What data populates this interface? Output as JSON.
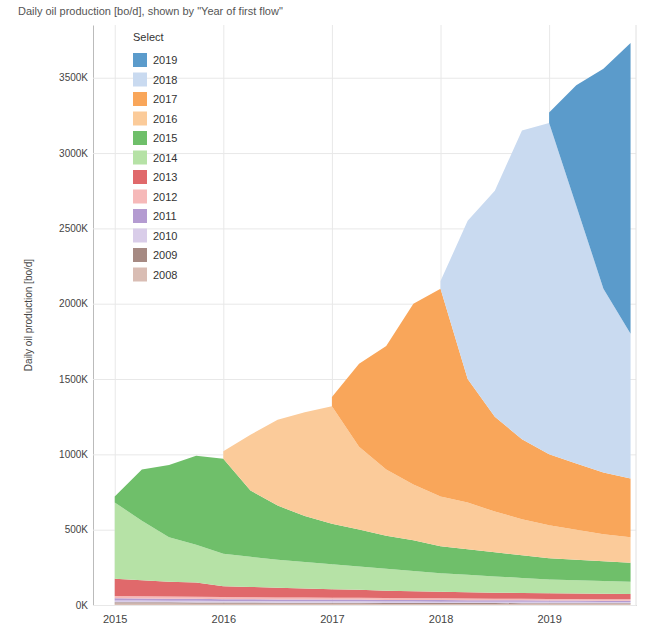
{
  "chart_data": {
    "type": "area",
    "stacked": true,
    "title": "Daily oil production [bo/d], shown by \"Year of first flow\"",
    "y_label": "Daily oil production [bo/d]",
    "legend_title": "Select",
    "legend": "upper left",
    "grid": true,
    "x": [
      2015,
      2015.25,
      2015.5,
      2015.75,
      2016,
      2016.25,
      2016.5,
      2016.75,
      2017,
      2017.25,
      2017.5,
      2017.75,
      2018,
      2018.25,
      2018.5,
      2018.75,
      2019,
      2019.25,
      2019.5,
      2019.75
    ],
    "xlim": [
      2014.8,
      2019.8
    ],
    "xticks": [
      2015,
      2016,
      2017,
      2018,
      2019
    ],
    "ylim": [
      0,
      3850000
    ],
    "yticks": [
      {
        "value": 0,
        "label": "0K"
      },
      {
        "value": 500000,
        "label": "500K"
      },
      {
        "value": 1000000,
        "label": "1000K"
      },
      {
        "value": 1500000,
        "label": "1500K"
      },
      {
        "value": 2000000,
        "label": "2000K"
      },
      {
        "value": 2500000,
        "label": "2500K"
      },
      {
        "value": 3000000,
        "label": "3000K"
      },
      {
        "value": 3500000,
        "label": "3500K"
      }
    ],
    "series": [
      {
        "name": "2008",
        "color": "#d9bdb4",
        "values": [
          10000,
          10000,
          10000,
          9000,
          9000,
          9000,
          8000,
          8000,
          8000,
          8000,
          7000,
          7000,
          7000,
          7000,
          7000,
          6000,
          6000,
          6000,
          6000,
          6000
        ]
      },
      {
        "name": "2009",
        "color": "#a68a83",
        "values": [
          8000,
          8000,
          8000,
          8000,
          7000,
          7000,
          7000,
          7000,
          7000,
          7000,
          6000,
          6000,
          6000,
          6000,
          6000,
          6000,
          6000,
          6000,
          5000,
          5000
        ]
      },
      {
        "name": "2010",
        "color": "#d9cde9",
        "values": [
          12000,
          12000,
          11000,
          11000,
          11000,
          11000,
          10000,
          10000,
          10000,
          10000,
          10000,
          10000,
          9000,
          9000,
          9000,
          9000,
          9000,
          9000,
          9000,
          9000
        ]
      },
      {
        "name": "2011",
        "color": "#b49bd1",
        "values": [
          14000,
          13000,
          13000,
          13000,
          12000,
          12000,
          12000,
          11000,
          11000,
          11000,
          11000,
          11000,
          11000,
          10000,
          10000,
          10000,
          9000,
          9000,
          9000,
          9000
        ]
      },
      {
        "name": "2012",
        "color": "#f6b9b9",
        "values": [
          16000,
          15000,
          14000,
          14000,
          14000,
          13000,
          13000,
          13000,
          12000,
          12000,
          12000,
          11000,
          11000,
          11000,
          10000,
          10000,
          10000,
          10000,
          10000,
          9000
        ]
      },
      {
        "name": "2013",
        "color": "#e0696b",
        "values": [
          115000,
          107000,
          99000,
          95000,
          72000,
          68000,
          65000,
          61000,
          57000,
          53000,
          49000,
          47000,
          44000,
          42000,
          40000,
          39000,
          38000,
          36000,
          36000,
          35000
        ]
      },
      {
        "name": "2014",
        "color": "#b6e2a6",
        "values": [
          505000,
          395000,
          295000,
          250000,
          215000,
          200000,
          185000,
          175000,
          165000,
          155000,
          145000,
          133000,
          122000,
          115000,
          108000,
          100000,
          92000,
          89000,
          85000,
          82000
        ]
      },
      {
        "name": "2015",
        "color": "#6fbf6a",
        "values": [
          40000,
          340000,
          480000,
          590000,
          630000,
          440000,
          360000,
          305000,
          270000,
          245000,
          220000,
          205000,
          180000,
          170000,
          160000,
          150000,
          140000,
          135000,
          130000,
          125000
        ]
      },
      {
        "name": "2016",
        "color": "#fbcb9a",
        "values": [
          null,
          null,
          null,
          null,
          50000,
          370000,
          570000,
          690000,
          780000,
          550000,
          440000,
          370000,
          330000,
          310000,
          270000,
          240000,
          220000,
          200000,
          180000,
          170000
        ]
      },
      {
        "name": "2017",
        "color": "#f9a65a",
        "values": [
          null,
          null,
          null,
          null,
          null,
          null,
          null,
          null,
          60000,
          550000,
          820000,
          1200000,
          1380000,
          820000,
          630000,
          530000,
          470000,
          440000,
          410000,
          390000
        ]
      },
      {
        "name": "2018",
        "color": "#c9daf0",
        "values": [
          null,
          null,
          null,
          null,
          null,
          null,
          null,
          null,
          null,
          null,
          null,
          null,
          50000,
          1050000,
          1500000,
          2050000,
          2200000,
          1710000,
          1220000,
          960000
        ]
      },
      {
        "name": "2019",
        "color": "#5b9bcb",
        "values": [
          null,
          null,
          null,
          null,
          null,
          null,
          null,
          null,
          null,
          null,
          null,
          null,
          null,
          null,
          null,
          null,
          70000,
          800000,
          1460000,
          1930000
        ]
      }
    ]
  }
}
